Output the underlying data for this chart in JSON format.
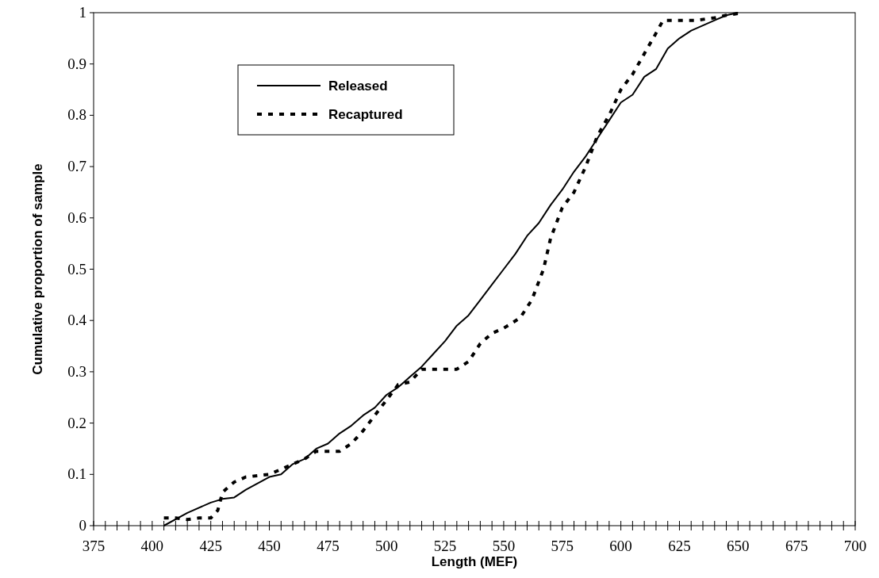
{
  "chart_data": {
    "type": "line",
    "xlabel": "Length (MEF)",
    "ylabel": "Cumulative proportion of sample",
    "xlim": [
      375,
      700
    ],
    "ylim": [
      0,
      1
    ],
    "xticks": [
      375,
      {
        "value": 380,
        "label": null
      },
      {
        "value": 385,
        "label": null
      },
      {
        "value": 390,
        "label": null
      },
      {
        "value": 395,
        "label": null
      },
      400,
      {
        "value": 405,
        "label": null
      },
      {
        "value": 410,
        "label": null
      },
      {
        "value": 415,
        "label": null
      },
      {
        "value": 420,
        "label": null
      },
      425,
      {
        "value": 430,
        "label": null
      },
      {
        "value": 435,
        "label": null
      },
      {
        "value": 440,
        "label": null
      },
      {
        "value": 445,
        "label": null
      },
      450,
      {
        "value": 455,
        "label": null
      },
      {
        "value": 460,
        "label": null
      },
      {
        "value": 465,
        "label": null
      },
      {
        "value": 470,
        "label": null
      },
      475,
      {
        "value": 480,
        "label": null
      },
      {
        "value": 485,
        "label": null
      },
      {
        "value": 490,
        "label": null
      },
      {
        "value": 495,
        "label": null
      },
      500,
      {
        "value": 505,
        "label": null
      },
      {
        "value": 510,
        "label": null
      },
      {
        "value": 515,
        "label": null
      },
      {
        "value": 520,
        "label": null
      },
      525,
      {
        "value": 530,
        "label": null
      },
      {
        "value": 535,
        "label": null
      },
      {
        "value": 540,
        "label": null
      },
      {
        "value": 545,
        "label": null
      },
      550,
      {
        "value": 555,
        "label": null
      },
      {
        "value": 560,
        "label": null
      },
      {
        "value": 565,
        "label": null
      },
      {
        "value": 570,
        "label": null
      },
      575,
      {
        "value": 580,
        "label": null
      },
      {
        "value": 585,
        "label": null
      },
      {
        "value": 590,
        "label": null
      },
      {
        "value": 595,
        "label": null
      },
      600,
      {
        "value": 605,
        "label": null
      },
      {
        "value": 610,
        "label": null
      },
      {
        "value": 615,
        "label": null
      },
      {
        "value": 620,
        "label": null
      },
      625,
      {
        "value": 630,
        "label": null
      },
      {
        "value": 635,
        "label": null
      },
      {
        "value": 640,
        "label": null
      },
      {
        "value": 645,
        "label": null
      },
      650,
      {
        "value": 655,
        "label": null
      },
      {
        "value": 660,
        "label": null
      },
      {
        "value": 665,
        "label": null
      },
      {
        "value": 670,
        "label": null
      },
      675,
      {
        "value": 680,
        "label": null
      },
      {
        "value": 685,
        "label": null
      },
      {
        "value": 690,
        "label": null
      },
      {
        "value": 695,
        "label": null
      },
      700
    ],
    "yticks": [
      0,
      0.1,
      0.2,
      0.3,
      0.4,
      0.5,
      0.6,
      0.7,
      0.8,
      0.9,
      1
    ],
    "grid": false,
    "legend": "top left",
    "marker": "none",
    "series": [
      {
        "name": "Released",
        "color": "#000000",
        "line_style": "solid",
        "x": [
          405,
          415,
          425,
          430,
          435,
          440,
          450,
          455,
          460,
          465,
          470,
          475,
          480,
          485,
          490,
          495,
          500,
          505,
          510,
          515,
          520,
          525,
          530,
          535,
          540,
          545,
          550,
          555,
          560,
          565,
          570,
          575,
          580,
          585,
          590,
          595,
          600,
          605,
          610,
          615,
          620,
          625,
          630,
          635,
          640,
          645,
          650
        ],
        "values": [
          0,
          0.025,
          0.045,
          0.052,
          0.055,
          0.07,
          0.095,
          0.1,
          0.12,
          0.13,
          0.15,
          0.16,
          0.18,
          0.195,
          0.215,
          0.23,
          0.255,
          0.27,
          0.29,
          0.31,
          0.335,
          0.36,
          0.39,
          0.41,
          0.44,
          0.47,
          0.5,
          0.53,
          0.565,
          0.59,
          0.625,
          0.655,
          0.69,
          0.72,
          0.755,
          0.79,
          0.825,
          0.84,
          0.875,
          0.89,
          0.93,
          0.95,
          0.965,
          0.975,
          0.985,
          0.995,
          1
        ]
      },
      {
        "name": "Recaptured",
        "color": "#000000",
        "line_style": "dashed",
        "x": [
          405,
          410,
          415,
          420,
          425,
          428,
          430,
          435,
          440,
          450,
          455,
          460,
          465,
          470,
          475,
          480,
          485,
          490,
          495,
          500,
          505,
          510,
          515,
          520,
          530,
          535,
          540,
          545,
          550,
          557,
          562,
          567,
          570,
          575,
          580,
          585,
          590,
          595,
          600,
          605,
          610,
          615,
          618,
          625,
          632,
          640,
          645,
          652
        ],
        "values": [
          0.015,
          0.015,
          0.012,
          0.015,
          0.015,
          0.03,
          0.065,
          0.085,
          0.095,
          0.1,
          0.11,
          0.12,
          0.13,
          0.145,
          0.145,
          0.145,
          0.16,
          0.185,
          0.215,
          0.245,
          0.275,
          0.28,
          0.305,
          0.305,
          0.305,
          0.32,
          0.355,
          0.375,
          0.385,
          0.405,
          0.44,
          0.5,
          0.56,
          0.62,
          0.65,
          0.7,
          0.76,
          0.8,
          0.85,
          0.88,
          0.92,
          0.96,
          0.985,
          0.985,
          0.985,
          0.99,
          0.995,
          1
        ]
      }
    ]
  }
}
